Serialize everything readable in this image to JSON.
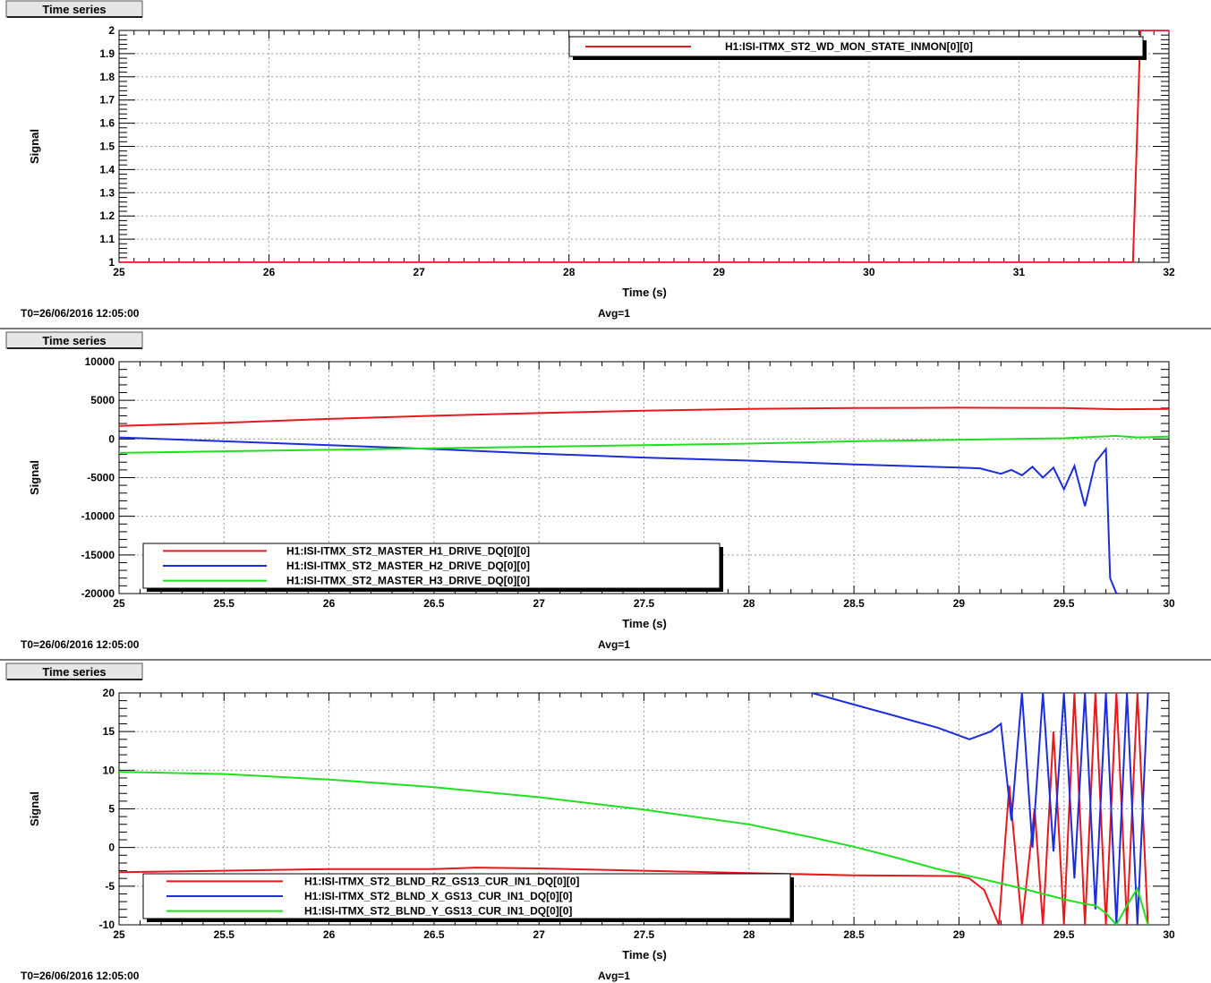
{
  "chart_data": [
    {
      "type": "line",
      "tab_label": "Time series",
      "xlabel": "Time (s)",
      "ylabel": "Signal",
      "xlim": [
        25,
        32
      ],
      "ylim": [
        1,
        2
      ],
      "xticks": [
        "25",
        "26",
        "27",
        "28",
        "29",
        "30",
        "31",
        "32"
      ],
      "yticks": [
        "1",
        "1.1",
        "1.2",
        "1.3",
        "1.4",
        "1.5",
        "1.6",
        "1.7",
        "1.8",
        "1.9",
        "2"
      ],
      "grid": true,
      "legend_position": "top-right",
      "footer_left": "T0=26/06/2016 12:05:00",
      "footer_center": "Avg=1",
      "series": [
        {
          "name": "H1:ISI-ITMX_ST2_WD_MON_STATE_INMON[0][0]",
          "color": "#e8191d",
          "x": [
            25,
            31.76,
            31.81,
            32
          ],
          "y": [
            1,
            1,
            2,
            2
          ]
        }
      ]
    },
    {
      "type": "line",
      "tab_label": "Time series",
      "xlabel": "Time (s)",
      "ylabel": "Signal",
      "xlim": [
        25,
        30
      ],
      "ylim": [
        -20000,
        10000
      ],
      "xticks": [
        "25",
        "25.5",
        "26",
        "26.5",
        "27",
        "27.5",
        "28",
        "28.5",
        "29",
        "29.5",
        "30"
      ],
      "yticks": [
        "-20000",
        "-15000",
        "-10000",
        "-5000",
        "0",
        "5000",
        "10000"
      ],
      "grid": true,
      "legend_position": "bottom-left",
      "footer_left": "T0=26/06/2016 12:05:00",
      "footer_center": "Avg=1",
      "series": [
        {
          "name": "H1:ISI-ITMX_ST2_MASTER_H1_DRIVE_DQ[0][0]",
          "color": "#e8191d",
          "x": [
            25,
            25.5,
            26,
            26.5,
            27,
            27.5,
            28,
            28.5,
            29,
            29.5,
            29.75,
            30
          ],
          "y": [
            1700,
            2100,
            2600,
            3000,
            3350,
            3650,
            3900,
            4000,
            4050,
            4000,
            3850,
            3900
          ]
        },
        {
          "name": "H1:ISI-ITMX_ST2_MASTER_H2_DRIVE_DQ[0][0]",
          "color": "#1c2ddb",
          "x": [
            25,
            25.5,
            26,
            26.5,
            27,
            27.5,
            28,
            28.5,
            29,
            29.1,
            29.2,
            29.25,
            29.3,
            29.35,
            29.4,
            29.45,
            29.5,
            29.55,
            29.6,
            29.65,
            29.7,
            29.72,
            29.75,
            29.76
          ],
          "y": [
            200,
            -300,
            -800,
            -1300,
            -1900,
            -2400,
            -2800,
            -3300,
            -3700,
            -3800,
            -4500,
            -4000,
            -4700,
            -3600,
            -5000,
            -3700,
            -6500,
            -3500,
            -8700,
            -3000,
            -1300,
            -18000,
            -20000,
            -20000
          ]
        },
        {
          "name": "H1:ISI-ITMX_ST2_MASTER_H3_DRIVE_DQ[0][0]",
          "color": "#1fe01f",
          "x": [
            25,
            25.5,
            26,
            26.5,
            27,
            27.5,
            28,
            28.5,
            29,
            29.5,
            29.75,
            29.85,
            30
          ],
          "y": [
            -1800,
            -1600,
            -1400,
            -1200,
            -1000,
            -800,
            -600,
            -300,
            -100,
            100,
            400,
            200,
            300
          ]
        }
      ]
    },
    {
      "type": "line",
      "tab_label": "Time series",
      "xlabel": "Time (s)",
      "ylabel": "Signal",
      "xlim": [
        25,
        30
      ],
      "ylim": [
        -10,
        20
      ],
      "xticks": [
        "25",
        "25.5",
        "26",
        "26.5",
        "27",
        "27.5",
        "28",
        "28.5",
        "29",
        "29.5",
        "30"
      ],
      "yticks": [
        "-10",
        "-5",
        "0",
        "5",
        "10",
        "15",
        "20"
      ],
      "grid": true,
      "legend_position": "bottom-left",
      "footer_left": "T0=26/06/2016 12:05:00",
      "footer_center": "Avg=1",
      "series": [
        {
          "name": "H1:ISI-ITMX_ST2_BLND_RZ_GS13_CUR_IN1_DQ[0][0]",
          "color": "#e8191d",
          "x": [
            25,
            25.5,
            26,
            26.5,
            26.7,
            27,
            27.5,
            28,
            28.5,
            29,
            29.05,
            29.12,
            29.19,
            29.24,
            29.3,
            29.36,
            29.4,
            29.45,
            29.5,
            29.55,
            29.6,
            29.65,
            29.7,
            29.75,
            29.8,
            29.85,
            29.9
          ],
          "y": [
            -3.2,
            -3.0,
            -2.8,
            -2.8,
            -2.6,
            -2.7,
            -3.0,
            -3.3,
            -3.6,
            -3.7,
            -4.0,
            -5.5,
            -10,
            8,
            -10,
            5,
            -10,
            15,
            -10,
            20,
            -10,
            20,
            -10,
            20,
            -10,
            20,
            -10
          ]
        },
        {
          "name": "H1:ISI-ITMX_ST2_BLND_X_GS13_CUR_IN1_DQ[0][0]",
          "color": "#1c2ddb",
          "x": [
            28.3,
            28.5,
            28.7,
            28.9,
            29.05,
            29.15,
            29.2,
            29.25,
            29.3,
            29.35,
            29.4,
            29.45,
            29.5,
            29.55,
            29.6,
            29.65,
            29.7,
            29.75,
            29.8,
            29.85,
            29.9
          ],
          "y": [
            20,
            18.5,
            17,
            15.5,
            14,
            15,
            16,
            3.5,
            20,
            0,
            20,
            -0.5,
            20,
            -4,
            20,
            -8,
            20,
            -10,
            20,
            -10,
            20
          ]
        },
        {
          "name": "H1:ISI-ITMX_ST2_BLND_Y_GS13_CUR_IN1_DQ[0][0]",
          "color": "#1fe01f",
          "x": [
            25,
            25.5,
            26,
            26.5,
            27,
            27.5,
            28,
            28.3,
            28.5,
            28.7,
            28.9,
            29.1,
            29.3,
            29.5,
            29.6,
            29.65,
            29.7,
            29.75,
            29.8,
            29.85,
            29.9
          ],
          "y": [
            9.8,
            9.5,
            8.8,
            7.8,
            6.5,
            4.9,
            3.0,
            1.3,
            0.1,
            -1.3,
            -2.8,
            -4.0,
            -5.3,
            -6.7,
            -7.3,
            -7.5,
            -8.5,
            -10,
            -7.5,
            -5.3,
            -10
          ]
        }
      ]
    }
  ]
}
